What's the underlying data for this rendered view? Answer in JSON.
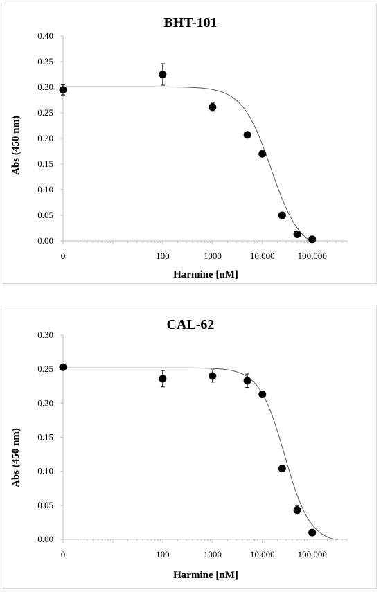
{
  "chart_data": [
    {
      "type": "scatter",
      "title": "BHT-101",
      "xlabel": "Harmine [nM]",
      "ylabel": "Abs (450 nm)",
      "x_scale": "log",
      "xlim": [
        1,
        500000
      ],
      "ylim": [
        0,
        0.4
      ],
      "y_ticks": [
        "0.00",
        "0.05",
        "0.10",
        "0.15",
        "0.20",
        "0.25",
        "0.30",
        "0.35",
        "0.40"
      ],
      "x_ticks": [
        {
          "value": 1,
          "label": "0"
        },
        {
          "value": 100,
          "label": "100"
        },
        {
          "value": 1000,
          "label": "1000"
        },
        {
          "value": 10000,
          "label": "10,000"
        },
        {
          "value": 100000,
          "label": "100,000"
        }
      ],
      "grid": false,
      "legend": "none",
      "colors": {
        "points": "#000000",
        "fit_line": "#595959",
        "axes": "#bfbfbf"
      },
      "series": [
        {
          "points": [
            {
              "x": 1,
              "y": 0.295,
              "err": 0.01
            },
            {
              "x": 100,
              "y": 0.325,
              "err": 0.021
            },
            {
              "x": 1000,
              "y": 0.261,
              "err": 0.008
            },
            {
              "x": 5000,
              "y": 0.207,
              "err": 0.003
            },
            {
              "x": 10000,
              "y": 0.17,
              "err": 0.003
            },
            {
              "x": 25000,
              "y": 0.05,
              "err": 0.003
            },
            {
              "x": 50000,
              "y": 0.013,
              "err": 0.002
            },
            {
              "x": 100000,
              "y": 0.003,
              "err": 0.001
            }
          ]
        }
      ],
      "fit_curve": {
        "top": 0.301,
        "bottom": -0.02,
        "ic50": 15000,
        "hill": 1.5
      }
    },
    {
      "type": "scatter",
      "title": "CAL-62",
      "xlabel": "Harmine [nM]",
      "ylabel": "Abs (450 nm)",
      "x_scale": "log",
      "xlim": [
        1,
        500000
      ],
      "ylim": [
        0,
        0.3
      ],
      "y_ticks": [
        "0.00",
        "0.05",
        "0.10",
        "0.15",
        "0.20",
        "0.25",
        "0.30"
      ],
      "x_ticks": [
        {
          "value": 1,
          "label": "0"
        },
        {
          "value": 100,
          "label": "100"
        },
        {
          "value": 1000,
          "label": "1000"
        },
        {
          "value": 10000,
          "label": "10,000"
        },
        {
          "value": 100000,
          "label": "100,000"
        }
      ],
      "grid": false,
      "legend": "none",
      "colors": {
        "points": "#000000",
        "fit_line": "#595959",
        "axes": "#bfbfbf"
      },
      "series": [
        {
          "points": [
            {
              "x": 1,
              "y": 0.253,
              "err": 0.004
            },
            {
              "x": 100,
              "y": 0.236,
              "err": 0.012
            },
            {
              "x": 1000,
              "y": 0.24,
              "err": 0.009
            },
            {
              "x": 5000,
              "y": 0.233,
              "err": 0.01
            },
            {
              "x": 10000,
              "y": 0.213,
              "err": 0.003
            },
            {
              "x": 25000,
              "y": 0.104,
              "err": 0.003
            },
            {
              "x": 50000,
              "y": 0.043,
              "err": 0.006
            },
            {
              "x": 100000,
              "y": 0.01,
              "err": 0.002
            }
          ]
        }
      ],
      "fit_curve": {
        "top": 0.252,
        "bottom": -0.005,
        "ic50": 28000,
        "hill": 1.7
      }
    }
  ]
}
